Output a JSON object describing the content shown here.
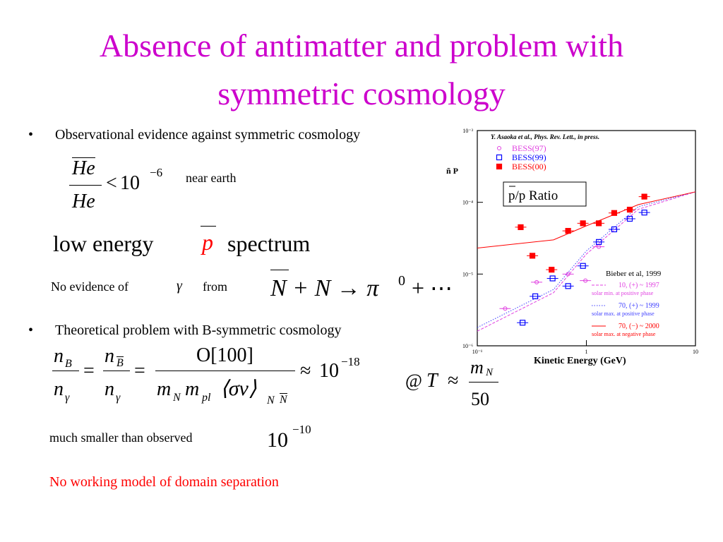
{
  "title_lines": [
    "Absence of antimatter and problem with",
    "symmetric cosmology"
  ],
  "bullets": [
    "Observational evidence against symmetric cosmology",
    "Theoretical problem with B-symmetric cosmology"
  ],
  "eq_he": {
    "num": "He",
    "den": "He",
    "rel": "<",
    "base": "10",
    "exp": "−6",
    "note": "near earth"
  },
  "spectrum": {
    "pre": "low energy",
    "sym": "p",
    "post": "spectrum"
  },
  "gamma": {
    "pre": "No evidence of",
    "sym": "γ",
    "mid": "from",
    "reaction": "N + N → π",
    "exp": "0",
    "tail": "+ ⋯"
  },
  "eq_ratio": {
    "n": "n",
    "sub_b": "B",
    "sub_g": "γ",
    "eq": "=",
    "num": "O[100]",
    "m": "m",
    "sub_n": "N",
    "sub_pl": "pl",
    "avg": "⟨σv⟩",
    "sub_nn1": "N",
    "sub_nn2": "N",
    "approx": "≈",
    "base": "10",
    "exp": "−18"
  },
  "eq_t": {
    "at": "@",
    "t": "T",
    "approx": "≈",
    "num": "m",
    "num_sub": "N",
    "den": "50"
  },
  "observed": {
    "text": "much smaller than observed",
    "base": "10",
    "exp": "−10"
  },
  "conclusion": "No working model of domain separation",
  "chart_data": {
    "type": "scatter",
    "citation": "Y. Asaoka et al., Phys. Rev. Lett., in press.",
    "y_label": "ñ P",
    "ratio_label": "p/p Ratio",
    "model_title": "Bieber et al, 1999",
    "x_label": "Kinetic Energy   (GeV)",
    "xlim": [
      0.1,
      10
    ],
    "ylim": [
      1e-06,
      0.001
    ],
    "xlog": true,
    "ylog": true,
    "xticks": [
      {
        "value": 0.1,
        "label": "10⁻¹"
      },
      1,
      10
    ],
    "yticks": [
      {
        "value": 1e-06,
        "label": "10⁻⁶"
      },
      {
        "value": 1e-05,
        "label": "10⁻⁵"
      },
      {
        "value": 0.0001,
        "label": "10⁻⁴"
      },
      {
        "value": 0.001,
        "label": "10⁻³"
      }
    ],
    "series": [
      {
        "name": "BESS(97)",
        "color": "#e040e0",
        "marker": "circle-open",
        "x": [
          0.18,
          0.35,
          0.68,
          0.98,
          1.3
        ],
        "values": [
          3.3e-06,
          7.7e-06,
          1e-05,
          8.1e-06,
          2.4e-05
        ]
      },
      {
        "name": "BESS(99)",
        "color": "#0000ff",
        "marker": "square-open",
        "x": [
          0.26,
          0.34,
          0.49,
          0.68,
          0.93,
          1.3,
          1.8,
          2.5,
          3.4
        ],
        "values": [
          2.1e-06,
          4.9e-06,
          8.7e-06,
          6.8e-06,
          1.3e-05,
          2.8e-05,
          4.2e-05,
          5.9e-05,
          7.2e-05
        ]
      },
      {
        "name": "BESS(00)",
        "color": "#ff0000",
        "marker": "square-filled",
        "x": [
          0.25,
          0.32,
          0.48,
          0.68,
          0.93,
          1.3,
          1.8,
          2.5,
          3.4
        ],
        "values": [
          4.5e-05,
          1.8e-05,
          1.15e-05,
          4e-05,
          5.1e-05,
          5.1e-05,
          7.1e-05,
          7.9e-05,
          0.00012
        ]
      }
    ],
    "curves": [
      {
        "name": "10, (+) ~ 1997",
        "note": "solar min. at positive phase",
        "color": "#e040e0",
        "style": "dashed",
        "x": [
          0.1,
          0.5,
          1,
          3,
          10
        ],
        "values": [
          1.6e-06,
          5.5e-06,
          1.9e-05,
          8e-05,
          0.00014
        ]
      },
      {
        "name": "70, (+) ~ 1999",
        "note": "solar max. at positive phase",
        "color": "#4040ff",
        "style": "dotted",
        "x": [
          0.1,
          0.5,
          1,
          3,
          10
        ],
        "values": [
          1.8e-06,
          6.1e-06,
          2.1e-05,
          8.7e-05,
          0.00014
        ]
      },
      {
        "name": "70, (−) ~ 2000",
        "note": "solar max. at negative phase",
        "color": "#ff0000",
        "style": "solid",
        "x": [
          0.1,
          0.5,
          1,
          3,
          10
        ],
        "values": [
          2.3e-05,
          3e-05,
          4.7e-05,
          9.3e-05,
          0.00014
        ]
      }
    ]
  }
}
